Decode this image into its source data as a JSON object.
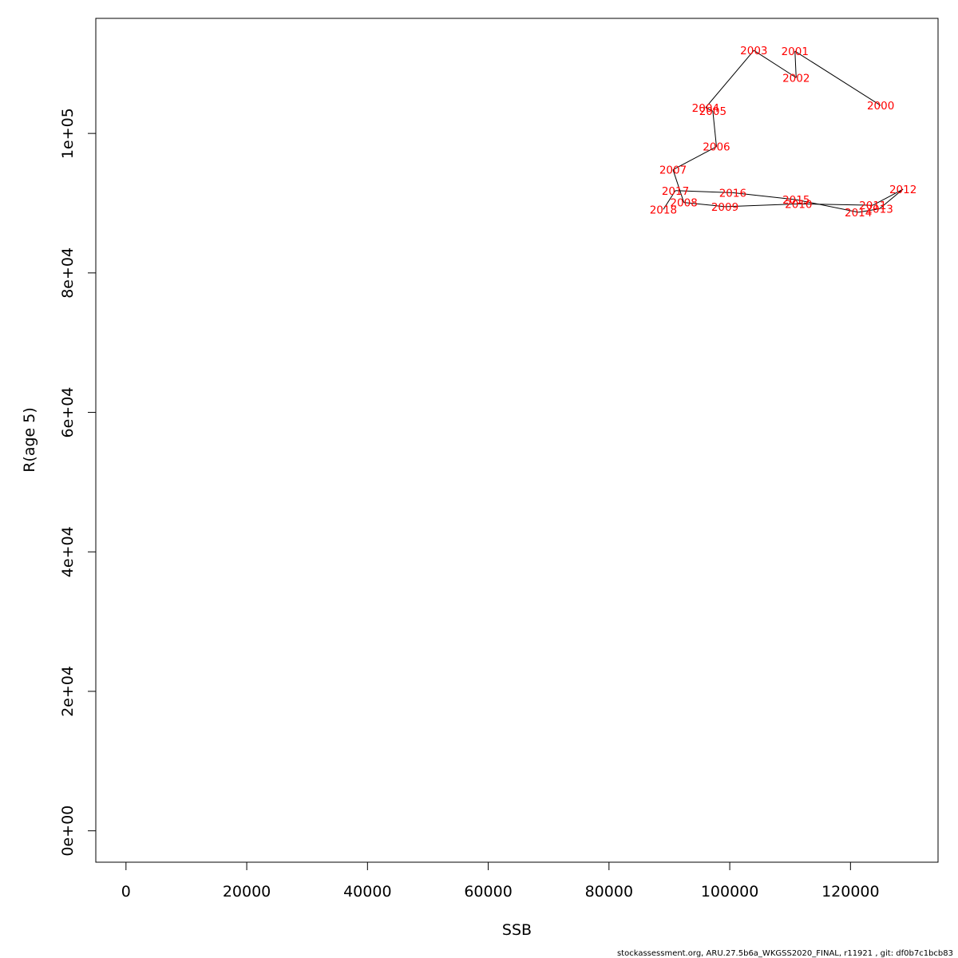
{
  "footer_text": "stockassessment.org, ARU.27.5b6a_WKGSS2020_FINAL, r11921 , git: df0b7c1bcb83",
  "chart_data": {
    "type": "line",
    "xlabel": "SSB",
    "ylabel": "R(age 5)",
    "xlim": [
      -5000,
      134500
    ],
    "ylim": [
      -4500,
      116500
    ],
    "x_ticks": [
      0,
      20000,
      40000,
      60000,
      80000,
      100000,
      120000
    ],
    "x_tick_labels": [
      "0",
      "20000",
      "40000",
      "60000",
      "80000",
      "100000",
      "120000"
    ],
    "y_ticks": [
      0,
      20000,
      40000,
      60000,
      80000,
      100000
    ],
    "y_tick_labels": [
      "0e+00",
      "2e+04",
      "4e+04",
      "6e+04",
      "8e+04",
      "1e+05"
    ],
    "line_color": "#000000",
    "label_color": "#ff0000",
    "points": [
      {
        "year": "2000",
        "ssb": 125000,
        "r": 104000
      },
      {
        "year": "2001",
        "ssb": 110800,
        "r": 111800
      },
      {
        "year": "2002",
        "ssb": 111000,
        "r": 108000
      },
      {
        "year": "2003",
        "ssb": 104000,
        "r": 111900
      },
      {
        "year": "2004",
        "ssb": 96000,
        "r": 103700
      },
      {
        "year": "2005",
        "ssb": 97200,
        "r": 103200
      },
      {
        "year": "2006",
        "ssb": 97800,
        "r": 98100
      },
      {
        "year": "2007",
        "ssb": 90600,
        "r": 94800
      },
      {
        "year": "2008",
        "ssb": 92400,
        "r": 90100
      },
      {
        "year": "2009",
        "ssb": 99200,
        "r": 89500
      },
      {
        "year": "2010",
        "ssb": 111400,
        "r": 89900
      },
      {
        "year": "2011",
        "ssb": 123700,
        "r": 89700
      },
      {
        "year": "2012",
        "ssb": 128700,
        "r": 92000
      },
      {
        "year": "2013",
        "ssb": 124800,
        "r": 89200
      },
      {
        "year": "2014",
        "ssb": 121300,
        "r": 88700
      },
      {
        "year": "2015",
        "ssb": 111000,
        "r": 90500
      },
      {
        "year": "2016",
        "ssb": 100500,
        "r": 91500
      },
      {
        "year": "2017",
        "ssb": 91000,
        "r": 91800
      },
      {
        "year": "2018",
        "ssb": 89000,
        "r": 89100
      }
    ]
  }
}
